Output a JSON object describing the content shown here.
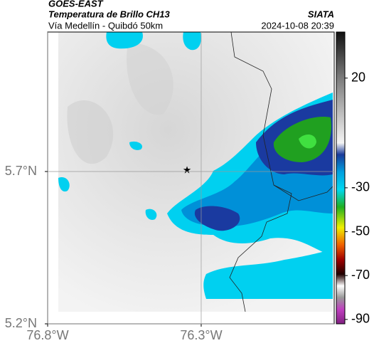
{
  "header": {
    "satellite": "GOES-EAST",
    "product": "Temperatura de Brillo CH13",
    "source": "SIATA",
    "route": "Vía Medellín - Quibdó 50km",
    "timestamp": "2024-10-08 20:39"
  },
  "map": {
    "xlim": [
      -76.8,
      -75.867
    ],
    "ylim": [
      5.2,
      6.158
    ],
    "xticks": [
      {
        "value": -76.8,
        "label": "76.8°W"
      },
      {
        "value": -76.3,
        "label": "76.3°W"
      }
    ],
    "yticks": [
      {
        "value": 5.2,
        "label": "5.2°N"
      },
      {
        "value": 5.7,
        "label": "5.7°N"
      }
    ],
    "grid": true
  },
  "colorbar": {
    "lim": [
      -92,
      41
    ],
    "ticks": [
      20,
      -30,
      -50,
      -70,
      -90
    ]
  }
}
